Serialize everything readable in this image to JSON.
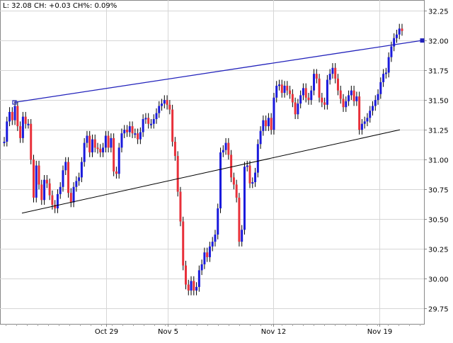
{
  "readout": {
    "last_label": "L:",
    "last": "32.08",
    "change_label": "CH:",
    "change": "+0.03",
    "change_pct_label": "CH%:",
    "change_pct": "0.09%"
  },
  "colors": {
    "up": "#1a1adc",
    "down": "#e8303a",
    "grid": "#d6d6d6",
    "upper_trendline": "#2222bb",
    "lower_trendline": "#000000",
    "background": "#ffffff"
  },
  "chart_data": {
    "type": "line",
    "title": "",
    "xlabel": "",
    "ylabel": "",
    "ylim": [
      29.62,
      32.34
    ],
    "yticks": [
      "29.75",
      "30.00",
      "30.25",
      "30.50",
      "30.75",
      "31.00",
      "31.25",
      "31.50",
      "31.75",
      "32.00",
      "32.25"
    ],
    "xticks": [
      "Oct 29",
      "Nov 5",
      "Nov 12",
      "Nov 19"
    ],
    "grid": true,
    "series": [
      {
        "values": [
          31.15,
          31.32,
          31.4,
          31.33,
          31.45,
          31.28,
          31.18,
          31.36,
          31.3,
          31.3,
          31.0,
          30.68,
          30.95,
          30.79,
          30.66,
          30.83,
          30.8,
          30.7,
          30.62,
          30.59,
          30.71,
          30.77,
          30.91,
          30.98,
          30.72,
          30.64,
          30.77,
          30.82,
          30.85,
          30.98,
          31.14,
          31.2,
          31.06,
          31.17,
          31.1,
          31.09,
          31.06,
          31.1,
          31.2,
          31.1,
          31.18,
          30.9,
          30.88,
          31.1,
          31.22,
          31.25,
          31.23,
          31.28,
          31.22,
          31.22,
          31.17,
          31.23,
          31.34,
          31.35,
          31.3,
          31.3,
          31.34,
          31.39,
          31.45,
          31.47,
          31.5,
          31.46,
          31.42,
          31.15,
          31.03,
          30.73,
          30.48,
          30.11,
          29.95,
          29.9,
          29.98,
          29.9,
          29.93,
          30.07,
          30.12,
          30.22,
          30.18,
          30.27,
          30.31,
          30.37,
          30.59,
          31.06,
          31.08,
          31.14,
          31.04,
          30.85,
          30.79,
          30.68,
          30.31,
          30.41,
          30.94,
          30.95,
          30.8,
          30.81,
          30.89,
          31.13,
          31.24,
          31.33,
          31.28,
          31.35,
          31.25,
          31.52,
          31.62,
          31.63,
          31.56,
          31.62,
          31.58,
          31.55,
          31.48,
          31.38,
          31.47,
          31.54,
          31.6,
          31.52,
          31.5,
          31.58,
          31.72,
          31.68,
          31.52,
          31.48,
          31.46,
          31.67,
          31.72,
          31.77,
          31.68,
          31.58,
          31.51,
          31.44,
          31.49,
          31.54,
          31.58,
          31.49,
          31.53,
          31.25,
          31.3,
          31.32,
          31.35,
          31.41,
          31.45,
          31.5,
          31.55,
          31.65,
          31.72,
          31.73,
          31.86,
          31.95,
          32.02,
          32.05,
          32.1,
          32.08
        ],
        "ohlc_note": "intraday closes, color by direction"
      }
    ],
    "trendlines": [
      {
        "x": [
          "Oct 22",
          "Nov 23"
        ],
        "y": [
          31.48,
          32.0
        ]
      },
      {
        "x": [
          "Oct 22",
          "Nov 21"
        ],
        "y": [
          30.55,
          31.25
        ]
      }
    ]
  }
}
